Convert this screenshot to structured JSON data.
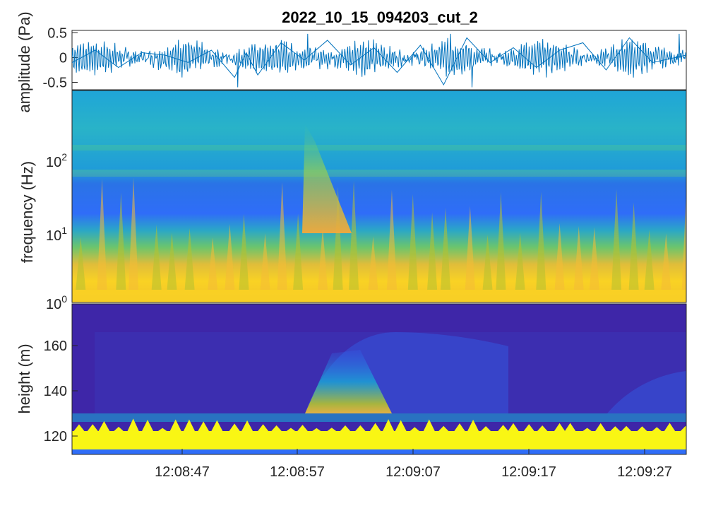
{
  "chart_data": [
    {
      "type": "line",
      "title": "2022_10_15_094203_cut_2",
      "ylabel": "amplitude (Pa)",
      "ylim": [
        -0.65,
        0.55
      ],
      "yticks": [
        {
          "value": 0.5,
          "label": "0.5"
        },
        {
          "value": 0,
          "label": "0"
        },
        {
          "value": -0.5,
          "label": "-0.5"
        }
      ],
      "xlim": [
        "12:08:37.6",
        "12:09:30.5"
      ],
      "series": [
        {
          "x": [
            0,
            2,
            4,
            6,
            8,
            10,
            12,
            14,
            15,
            16,
            18,
            20,
            22,
            24,
            26,
            28,
            30,
            32,
            34,
            36,
            38,
            40,
            42,
            44,
            46,
            48,
            50,
            52.9
          ],
          "y": [
            -0.1,
            0.15,
            -0.2,
            0.1,
            0.05,
            -0.1,
            0.15,
            -0.4,
            0.1,
            -0.35,
            0.3,
            -0.05,
            0.35,
            -0.15,
            0.2,
            -0.3,
            0.25,
            -0.55,
            0.4,
            -0.1,
            0.2,
            -0.2,
            0.15,
            0.3,
            -0.25,
            0.4,
            -0.1,
            0.05
          ]
        }
      ],
      "color": "#0072bd"
    },
    {
      "type": "heatmap",
      "ylabel": "frequency (Hz)",
      "yscale": "log",
      "yticks": [
        {
          "base": "10",
          "exp": "0"
        },
        {
          "base": "10",
          "exp": "1"
        },
        {
          "base": "10",
          "exp": "2"
        }
      ],
      "colormap": "parula",
      "colors": [
        "#3e26a8",
        "#2f6df8",
        "#17b0d6",
        "#50ca8d",
        "#b5c12f",
        "#f4bb36",
        "#f9f614"
      ],
      "bursts_time": [
        "12:08:57",
        "12:08:58"
      ]
    },
    {
      "type": "heatmap",
      "ylabel": "height (m)",
      "ylim": [
        112,
        176
      ],
      "yticks": [
        {
          "value": 120,
          "label": "120"
        },
        {
          "value": 140,
          "label": "140"
        },
        {
          "value": 160,
          "label": "160"
        }
      ],
      "xticks": [
        "12:08:47",
        "12:08:57",
        "12:09:07",
        "12:09:17",
        "12:09:27"
      ],
      "colormap": "parula",
      "background": "#3e26a8"
    }
  ]
}
